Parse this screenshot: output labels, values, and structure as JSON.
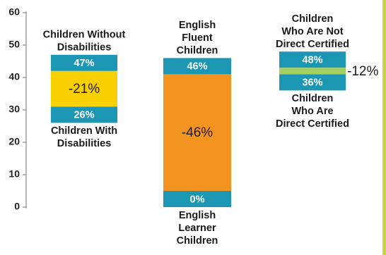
{
  "chart_data": {
    "type": "bar",
    "title": "",
    "xlabel": "",
    "ylabel": "",
    "ylim": [
      0,
      60
    ],
    "yticks": [
      "0",
      "10",
      "20",
      "30",
      "40",
      "50",
      "60"
    ],
    "grid": false,
    "groups": [
      {
        "top_value": 47,
        "bottom_value": 26,
        "top_label": "47%",
        "bottom_label": "26%",
        "gap_label": "-21%",
        "top_caption": [
          "Children Without",
          "Disabilities"
        ],
        "bottom_caption": [
          "Children With",
          "Disabilities"
        ],
        "gap_color": "#f8d000"
      },
      {
        "top_value": 46,
        "bottom_value": 0,
        "top_label": "46%",
        "bottom_label": "0%",
        "gap_label": "-46%",
        "top_caption": [
          "English",
          "Fluent",
          "Children"
        ],
        "bottom_caption": [
          "English",
          "Learner",
          "Children"
        ],
        "gap_color": "#f49420"
      },
      {
        "top_value": 48,
        "bottom_value": 36,
        "top_label": "48%",
        "bottom_label": "36%",
        "gap_label": "-12%",
        "top_caption": [
          "Children",
          "Who Are Not",
          "Direct Certified"
        ],
        "bottom_caption": [
          "Children",
          "Who Are",
          "Direct Certified"
        ],
        "gap_color": "#a3cf62"
      }
    ],
    "colors": {
      "endpoint": "#1b97b3",
      "axis": "#888888",
      "right_edge": "#c8d24a"
    }
  }
}
